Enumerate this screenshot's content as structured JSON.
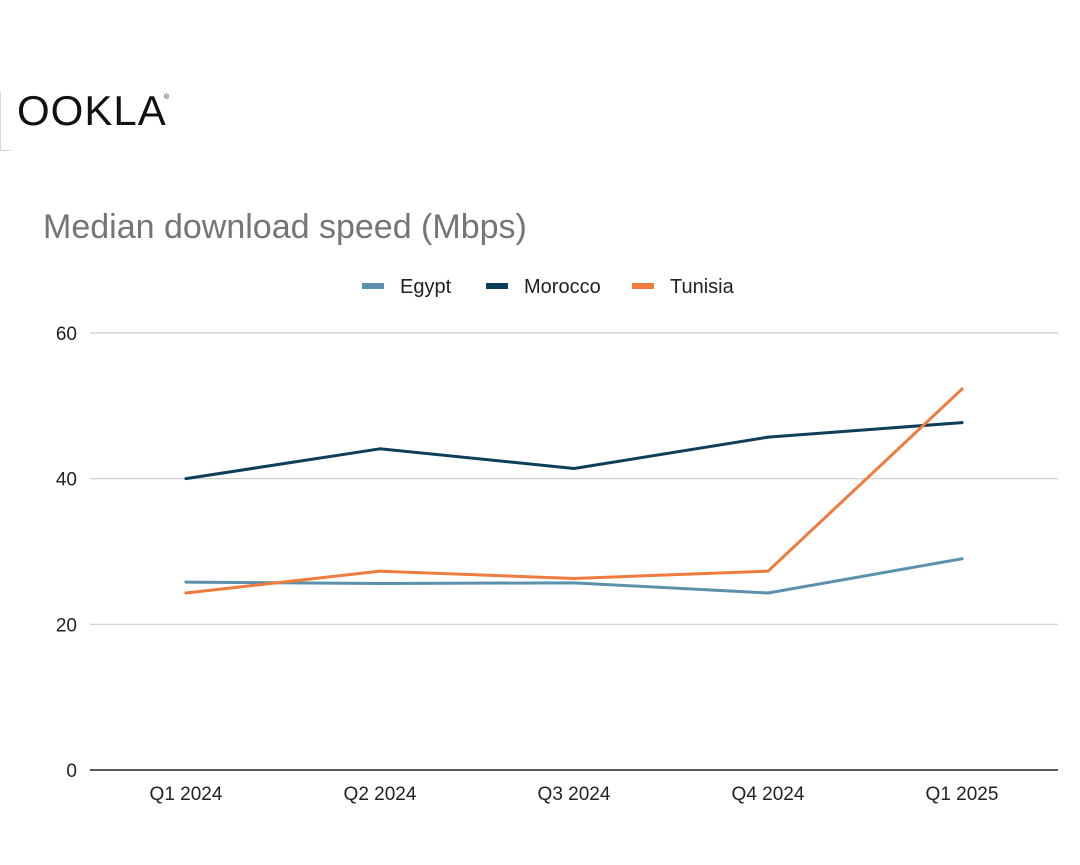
{
  "brand": {
    "logo_text": "OOKLA",
    "trademark": "®"
  },
  "colors": {
    "Egypt": "#5b91ad",
    "Morocco": "#0d3f58",
    "Tunisia": "#ef7b3e",
    "grid": "#cccccc",
    "axis": "#222222",
    "title": "#757575"
  },
  "chart_data": {
    "type": "line",
    "title": "Median download speed (Mbps)",
    "xlabel": "",
    "ylabel": "",
    "categories": [
      "Q1 2024",
      "Q2 2024",
      "Q3 2024",
      "Q4 2024",
      "Q1 2025"
    ],
    "ylim": [
      0,
      60
    ],
    "yticks": [
      0,
      20,
      40,
      60
    ],
    "grid": true,
    "legend_position": "top-center",
    "series": [
      {
        "name": "Egypt",
        "values": [
          25.8,
          25.6,
          25.7,
          24.3,
          29.0
        ]
      },
      {
        "name": "Morocco",
        "values": [
          40.0,
          44.1,
          41.4,
          45.7,
          47.7
        ]
      },
      {
        "name": "Tunisia",
        "values": [
          24.3,
          27.3,
          26.3,
          27.3,
          52.3
        ]
      }
    ]
  }
}
